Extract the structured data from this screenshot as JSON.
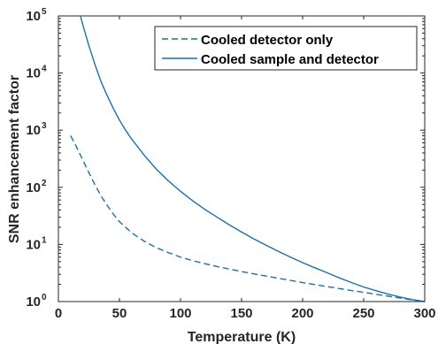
{
  "chart_data": {
    "type": "line",
    "title": "",
    "xlabel": "Temperature (K)",
    "ylabel": "SNR enhancement factor",
    "xlim": [
      0,
      300
    ],
    "ylim": [
      1,
      100000
    ],
    "yscale": "log",
    "xticks": [
      0,
      50,
      100,
      150,
      200,
      250,
      300
    ],
    "xtick_labels": [
      "0",
      "50",
      "100",
      "150",
      "200",
      "250",
      "300"
    ],
    "yticks": [
      1,
      10,
      100,
      1000,
      10000,
      100000
    ],
    "ytick_labels": [
      {
        "base": "10",
        "exp": "0"
      },
      {
        "base": "10",
        "exp": "1"
      },
      {
        "base": "10",
        "exp": "2"
      },
      {
        "base": "10",
        "exp": "3"
      },
      {
        "base": "10",
        "exp": "4"
      },
      {
        "base": "10",
        "exp": "5"
      }
    ],
    "grid": false,
    "legend_position": "top-right",
    "series": [
      {
        "name": "Cooled detector only",
        "style": "dashed",
        "color": "#1f6fa8",
        "x": [
          10,
          15,
          20,
          25,
          30,
          35,
          40,
          45,
          50,
          55,
          60,
          70,
          80,
          90,
          100,
          110,
          120,
          130,
          140,
          150,
          160,
          170,
          180,
          190,
          200,
          210,
          220,
          230,
          240,
          250,
          260,
          270,
          280,
          290,
          300
        ],
        "y": [
          800,
          500,
          300,
          180,
          110,
          70,
          48,
          34,
          25,
          20,
          16,
          11.5,
          8.8,
          7.2,
          6.0,
          5.2,
          4.6,
          4.1,
          3.7,
          3.35,
          3.05,
          2.8,
          2.56,
          2.35,
          2.15,
          1.98,
          1.83,
          1.69,
          1.56,
          1.45,
          1.34,
          1.24,
          1.15,
          1.07,
          1.0
        ]
      },
      {
        "name": "Cooled sample and detector",
        "style": "solid",
        "color": "#1f6fa8",
        "x": [
          18,
          20,
          25,
          30,
          35,
          40,
          45,
          50,
          55,
          60,
          70,
          80,
          90,
          100,
          110,
          120,
          130,
          140,
          150,
          160,
          170,
          180,
          190,
          200,
          210,
          220,
          230,
          240,
          250,
          260,
          270,
          280,
          290,
          300
        ],
        "y": [
          100000,
          70000,
          30000,
          14000,
          7000,
          4000,
          2400,
          1500,
          1000,
          700,
          370,
          210,
          130,
          85,
          58,
          41,
          30,
          22,
          16.5,
          12.5,
          9.7,
          7.6,
          6.0,
          4.8,
          3.9,
          3.2,
          2.6,
          2.15,
          1.8,
          1.55,
          1.35,
          1.2,
          1.08,
          1.0
        ]
      }
    ]
  }
}
